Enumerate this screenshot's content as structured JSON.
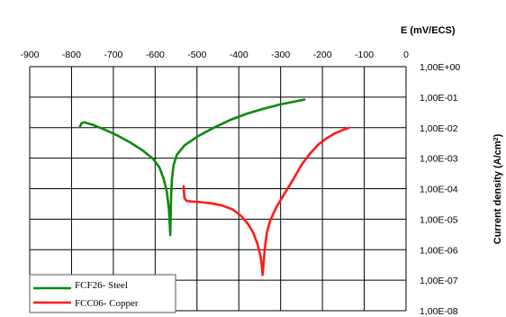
{
  "chart_data": {
    "type": "line",
    "xlabel": "E (mV/ECS)",
    "ylabel": "Current density (A/cm²)",
    "ylabel_main": "Current density (A/cm",
    "ylabel_sup": "2",
    "ylabel_tail": ")",
    "xlim": [
      -900,
      0
    ],
    "x_ticks": [
      -900,
      -800,
      -700,
      -600,
      -500,
      -400,
      -300,
      -200,
      -100,
      0
    ],
    "x_tick_labels": [
      "-900",
      "-800",
      "-700",
      "-600",
      "-500",
      "-400",
      "-300",
      "-200",
      "-100",
      "0"
    ],
    "y_scale": "log",
    "ylim": [
      1e-08,
      1
    ],
    "y_ticks": [
      1,
      0.1,
      0.01,
      0.001,
      0.0001,
      1e-05,
      1e-06,
      1e-07,
      1e-08
    ],
    "y_tick_labels": [
      "1,00E+00",
      "1,00E-01",
      "1,00E-02",
      "1,00E-03",
      "1,00E-04",
      "1,00E-05",
      "1,00E-06",
      "1,00E-07",
      "1,00E-08"
    ],
    "grid": true,
    "legend_position": "bottom-left",
    "series": [
      {
        "name": "FCF26- Steel",
        "color": "#0a8a0a",
        "points": [
          [
            -780,
            0.0105
          ],
          [
            -776,
            0.014
          ],
          [
            -770,
            0.015
          ],
          [
            -750,
            0.0125
          ],
          [
            -720,
            0.0085
          ],
          [
            -690,
            0.0055
          ],
          [
            -660,
            0.0033
          ],
          [
            -630,
            0.0018
          ],
          [
            -605,
            0.00095
          ],
          [
            -590,
            0.0005
          ],
          [
            -580,
            0.00022
          ],
          [
            -572,
            8e-05
          ],
          [
            -567,
            2e-05
          ],
          [
            -565,
            6e-06
          ],
          [
            -564,
            3e-06
          ],
          [
            -563,
            1e-05
          ],
          [
            -562,
            5e-05
          ],
          [
            -560,
            0.0002
          ],
          [
            -556,
            0.0006
          ],
          [
            -548,
            0.0013
          ],
          [
            -530,
            0.0026
          ],
          [
            -500,
            0.005
          ],
          [
            -460,
            0.01
          ],
          [
            -420,
            0.018
          ],
          [
            -380,
            0.029
          ],
          [
            -340,
            0.042
          ],
          [
            -300,
            0.058
          ],
          [
            -260,
            0.075
          ],
          [
            -243,
            0.083
          ]
        ]
      },
      {
        "name": "FCC06- Copper",
        "color": "#ff1a1a",
        "points": [
          [
            -532,
            0.00012
          ],
          [
            -530,
            5e-05
          ],
          [
            -525,
            4e-05
          ],
          [
            -515,
            3.8e-05
          ],
          [
            -490,
            3.6e-05
          ],
          [
            -465,
            3.3e-05
          ],
          [
            -440,
            2.8e-05
          ],
          [
            -415,
            2.1e-05
          ],
          [
            -395,
            1.3e-05
          ],
          [
            -378,
            7e-06
          ],
          [
            -365,
            3.5e-06
          ],
          [
            -355,
            1.5e-06
          ],
          [
            -348,
            6e-07
          ],
          [
            -345,
            3e-07
          ],
          [
            -343,
            1.5e-07
          ],
          [
            -341,
            3e-07
          ],
          [
            -338,
            1e-06
          ],
          [
            -333,
            3.5e-06
          ],
          [
            -325,
            9e-06
          ],
          [
            -310,
            2.5e-05
          ],
          [
            -290,
            7e-05
          ],
          [
            -270,
            0.0002
          ],
          [
            -250,
            0.0006
          ],
          [
            -230,
            0.0014
          ],
          [
            -210,
            0.0028
          ],
          [
            -190,
            0.0045
          ],
          [
            -170,
            0.0065
          ],
          [
            -150,
            0.0085
          ],
          [
            -137,
            0.0098
          ]
        ]
      }
    ]
  }
}
